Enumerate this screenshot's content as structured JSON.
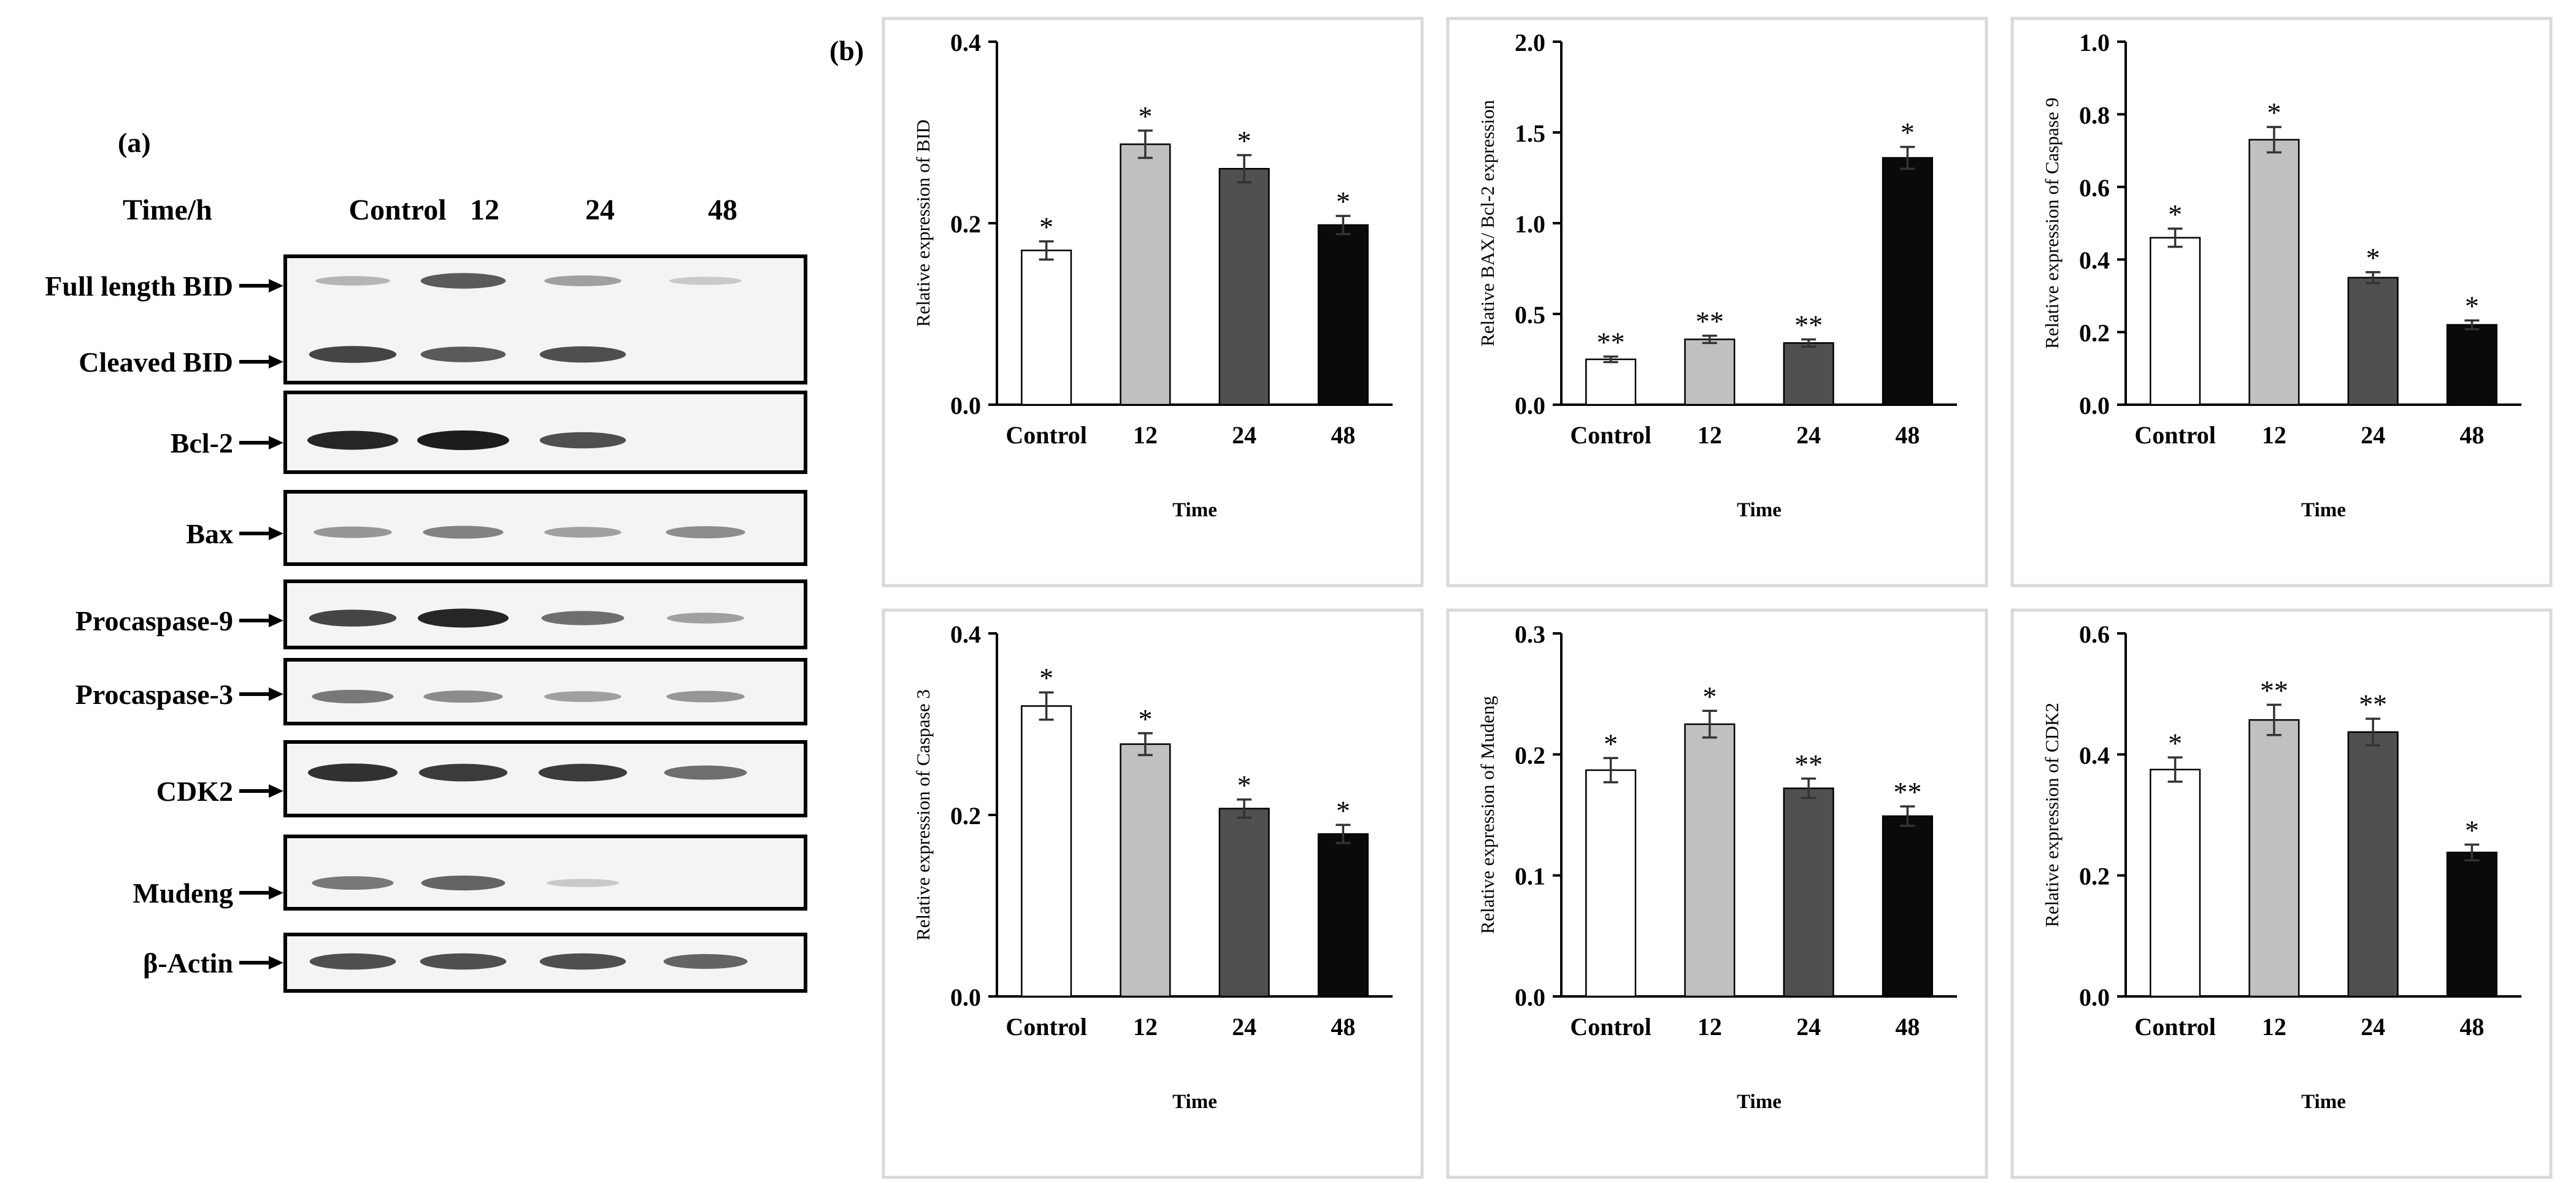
{
  "panel_a_label": "(a)",
  "panel_b_label": "(b)",
  "blot": {
    "header_label": "Time/h",
    "columns": [
      "Control",
      "12",
      "24",
      "48"
    ],
    "rows": [
      {
        "label": "Full length BID"
      },
      {
        "label": "Cleaved BID"
      },
      {
        "label": "Bcl-2"
      },
      {
        "label": "Bax"
      },
      {
        "label": "Procaspase-9"
      },
      {
        "label": "Procaspase-3"
      },
      {
        "label": "CDK2"
      },
      {
        "label": "Mudeng"
      },
      {
        "label": "β-Actin"
      }
    ],
    "band_intensity": {
      "Full length BID": [
        0.25,
        0.7,
        0.35,
        0.15
      ],
      "Cleaved BID": [
        0.8,
        0.7,
        0.75,
        0.0
      ],
      "Bcl-2": [
        0.95,
        1.0,
        0.75,
        0.0
      ],
      "Bax": [
        0.4,
        0.5,
        0.35,
        0.45
      ],
      "Procaspase-9": [
        0.8,
        0.95,
        0.6,
        0.35
      ],
      "Procaspase-3": [
        0.55,
        0.45,
        0.35,
        0.4
      ],
      "CDK2": [
        0.9,
        0.85,
        0.85,
        0.6
      ],
      "Mudeng": [
        0.55,
        0.65,
        0.15,
        0.0
      ],
      "β-Actin": [
        0.75,
        0.75,
        0.75,
        0.65
      ]
    }
  },
  "colors": {
    "Control": "#ffffff",
    "12": "#c0c0c0",
    "24": "#505050",
    "48": "#0a0a0a",
    "frame": "#d9d9d9"
  },
  "chart_data": [
    {
      "type": "bar",
      "ylabel": "Relative expression of BID",
      "xlabel": "Time",
      "categories": [
        "Control",
        "12",
        "24",
        "48"
      ],
      "values": [
        0.17,
        0.287,
        0.26,
        0.198
      ],
      "errors": [
        0.01,
        0.015,
        0.015,
        0.01
      ],
      "annotations": [
        "*",
        "*",
        "*",
        "*"
      ],
      "ylim": [
        0,
        0.4
      ],
      "yticks": [
        "0.0",
        "0.2",
        "0.4"
      ]
    },
    {
      "type": "bar",
      "ylabel": "Relative BAX/ Bcl-2 expression",
      "xlabel": "Time",
      "categories": [
        "Control",
        "12",
        "24",
        "48"
      ],
      "values": [
        0.25,
        0.36,
        0.34,
        1.36
      ],
      "errors": [
        0.015,
        0.02,
        0.02,
        0.06
      ],
      "annotations": [
        "**",
        "**",
        "**",
        "*"
      ],
      "ylim": [
        0,
        2.0
      ],
      "yticks": [
        "0.0",
        "0.5",
        "1.0",
        "1.5",
        "2.0"
      ]
    },
    {
      "type": "bar",
      "ylabel": "Relative expression of Caspase 9",
      "xlabel": "Time",
      "categories": [
        "Control",
        "12",
        "24",
        "48"
      ],
      "values": [
        0.46,
        0.73,
        0.35,
        0.22
      ],
      "errors": [
        0.025,
        0.035,
        0.015,
        0.012
      ],
      "annotations": [
        "*",
        "*",
        "*",
        "*"
      ],
      "ylim": [
        0,
        1.0
      ],
      "yticks": [
        "0.0",
        "0.2",
        "0.4",
        "0.6",
        "0.8",
        "1.0"
      ]
    },
    {
      "type": "bar",
      "ylabel": "Relative expression of Caspase 3",
      "xlabel": "Time",
      "categories": [
        "Control",
        "12",
        "24",
        "48"
      ],
      "values": [
        0.32,
        0.278,
        0.207,
        0.179
      ],
      "errors": [
        0.015,
        0.012,
        0.01,
        0.01
      ],
      "annotations": [
        "*",
        "*",
        "*",
        "*"
      ],
      "ylim": [
        0,
        0.4
      ],
      "yticks": [
        "0.0",
        "0.2",
        "0.4"
      ]
    },
    {
      "type": "bar",
      "ylabel": "Relative expression of Mudeng",
      "xlabel": "Time",
      "categories": [
        "Control",
        "12",
        "24",
        "48"
      ],
      "values": [
        0.187,
        0.225,
        0.172,
        0.149
      ],
      "errors": [
        0.01,
        0.011,
        0.008,
        0.008
      ],
      "annotations": [
        "*",
        "*",
        "**",
        "**"
      ],
      "ylim": [
        0,
        0.3
      ],
      "yticks": [
        "0.0",
        "0.1",
        "0.2",
        "0.3"
      ]
    },
    {
      "type": "bar",
      "ylabel": "Relative expression of CDK2",
      "xlabel": "Time",
      "categories": [
        "Control",
        "12",
        "24",
        "48"
      ],
      "values": [
        0.375,
        0.457,
        0.437,
        0.238
      ],
      "errors": [
        0.02,
        0.025,
        0.022,
        0.013
      ],
      "annotations": [
        "*",
        "**",
        "**",
        "*"
      ],
      "ylim": [
        0,
        0.6
      ],
      "yticks": [
        "0.0",
        "0.2",
        "0.4",
        "0.6"
      ]
    }
  ]
}
